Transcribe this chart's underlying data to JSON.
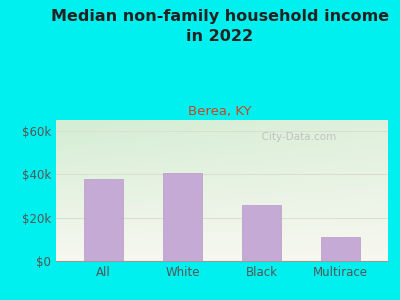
{
  "title": "Median non-family household income\nin 2022",
  "subtitle": "Berea, KY",
  "categories": [
    "All",
    "White",
    "Black",
    "Multirace"
  ],
  "values": [
    38000,
    40500,
    26000,
    11000
  ],
  "bar_color": "#c4aad4",
  "bar_edge_color": "#b898cc",
  "title_fontsize": 11.5,
  "subtitle_fontsize": 9.5,
  "subtitle_color": "#cc4422",
  "title_color": "#222222",
  "yticks": [
    0,
    20000,
    40000,
    60000
  ],
  "ytick_labels": [
    "$0",
    "$20k",
    "$40k",
    "$60k"
  ],
  "ylim": [
    0,
    65000
  ],
  "background_color": "#00f0f0",
  "plot_bg_topleft": "#d4eed4",
  "plot_bg_bottomright": "#f8f8f0",
  "watermark": "  City-Data.com",
  "tick_color": "#555555",
  "grid_color": "#ddddcc",
  "figsize": [
    4.0,
    3.0
  ],
  "dpi": 100
}
